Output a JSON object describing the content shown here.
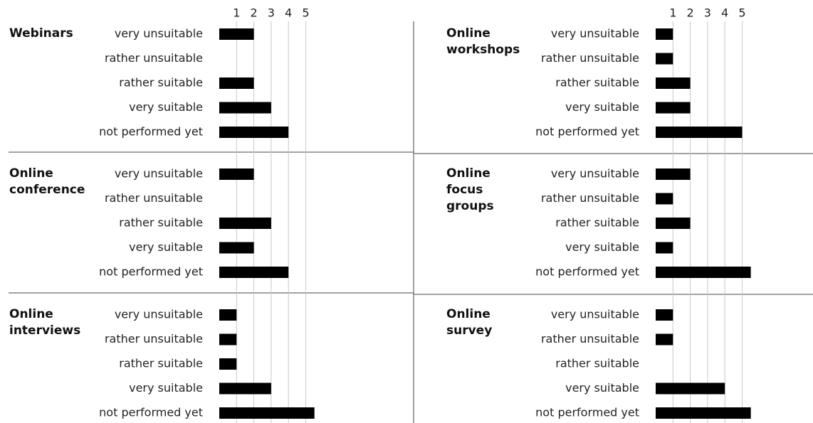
{
  "axis": {
    "xlim": [
      0,
      6
    ],
    "xticks": [
      1,
      2,
      3,
      4,
      5
    ]
  },
  "chart_data": [
    {
      "type": "bar",
      "orientation": "horizontal",
      "title": "Webinars",
      "color": "#000000",
      "categories": [
        "very unsuitable",
        "rather unsuitable",
        "rather suitable",
        "very suitable",
        "not performed yet"
      ],
      "values": [
        2,
        0,
        2,
        3,
        4
      ]
    },
    {
      "type": "bar",
      "orientation": "horizontal",
      "title": "Online workshops",
      "color": "#000000",
      "categories": [
        "very unsuitable",
        "rather unsuitable",
        "rather suitable",
        "very suitable",
        "not performed yet"
      ],
      "values": [
        1,
        1,
        2,
        2,
        5
      ]
    },
    {
      "type": "bar",
      "orientation": "horizontal",
      "title": "Online conference",
      "color": "#000000",
      "categories": [
        "very unsuitable",
        "rather unsuitable",
        "rather suitable",
        "very suitable",
        "not performed yet"
      ],
      "values": [
        2,
        0,
        3,
        2,
        4
      ]
    },
    {
      "type": "bar",
      "orientation": "horizontal",
      "title": "Online focus groups",
      "color": "#000000",
      "categories": [
        "very unsuitable",
        "rather unsuitable",
        "rather suitable",
        "very suitable",
        "not performed yet"
      ],
      "values": [
        2,
        1,
        2,
        1,
        5.5
      ]
    },
    {
      "type": "bar",
      "orientation": "horizontal",
      "title": "Online interviews",
      "color": "#000000",
      "categories": [
        "very unsuitable",
        "rather unsuitable",
        "rather suitable",
        "very suitable",
        "not performed yet"
      ],
      "values": [
        1,
        1,
        1,
        3,
        5.5
      ]
    },
    {
      "type": "bar",
      "orientation": "horizontal",
      "title": "Online survey",
      "color": "#000000",
      "categories": [
        "very unsuitable",
        "rather unsuitable",
        "rather suitable",
        "very suitable",
        "not performed yet"
      ],
      "values": [
        1,
        1,
        0,
        4,
        5.5
      ]
    }
  ]
}
